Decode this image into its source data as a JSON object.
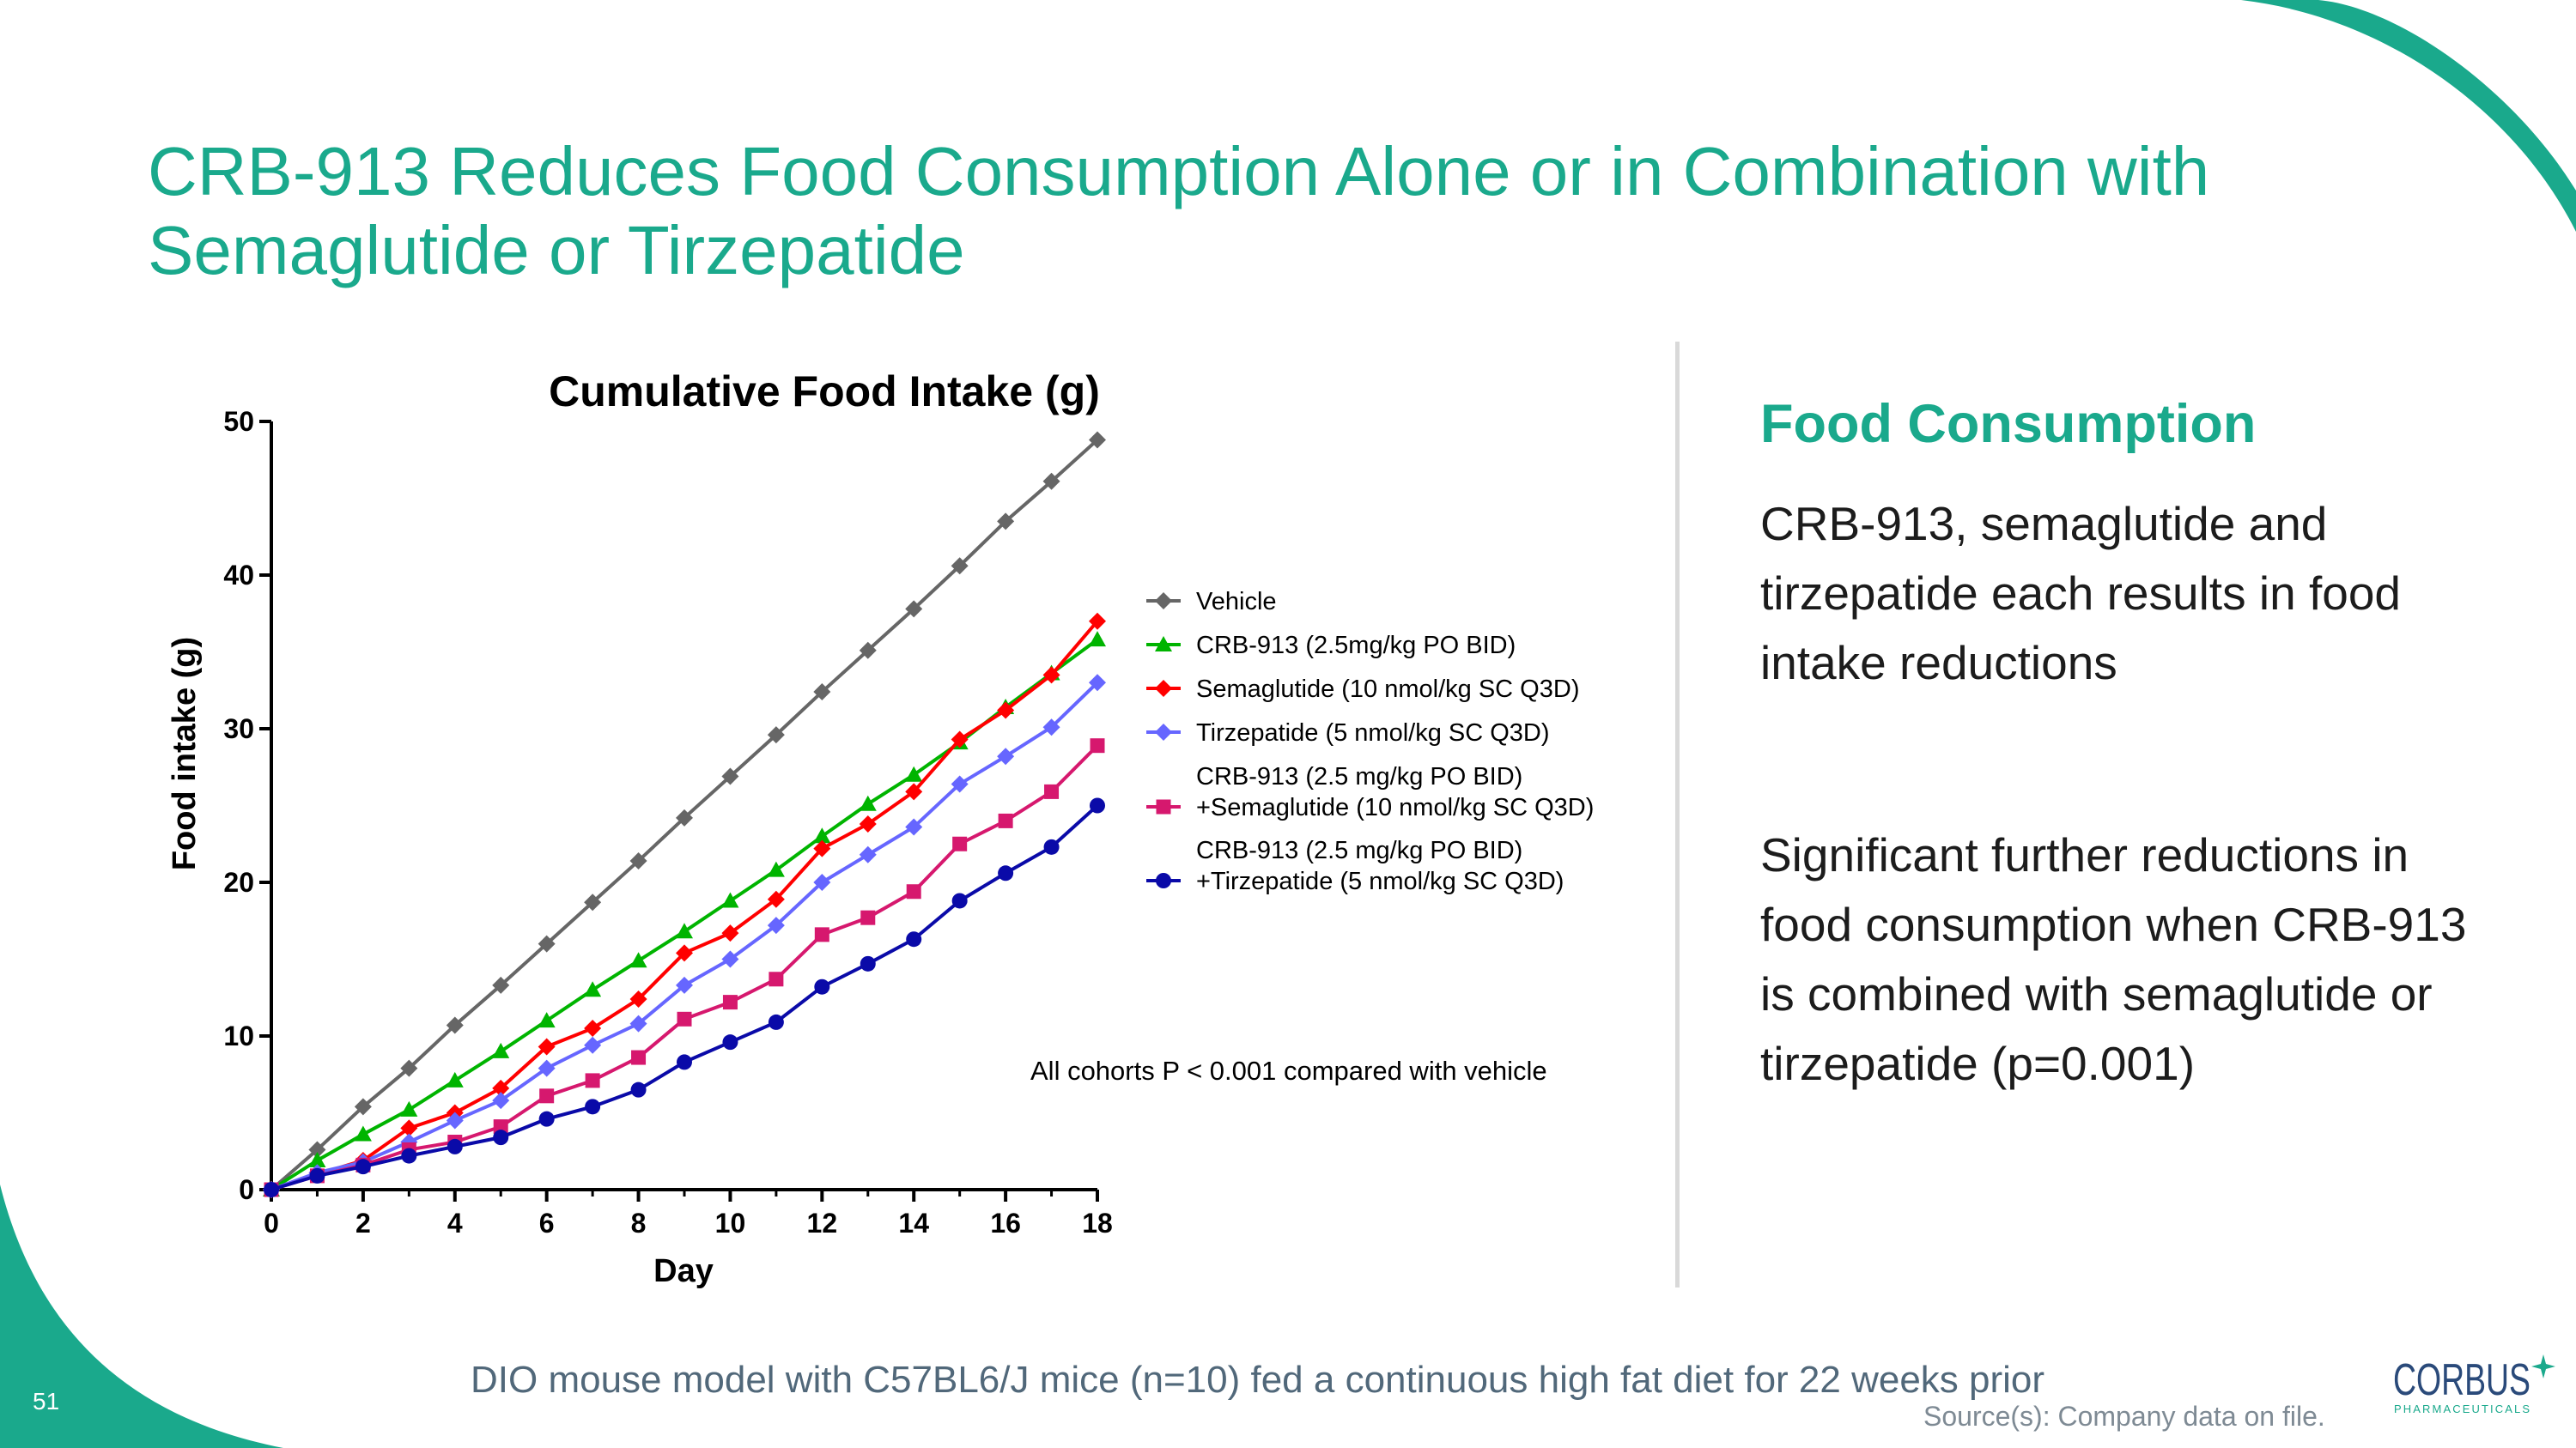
{
  "slide": {
    "title_line1": "CRB-913 Reduces Food Consumption Alone or in Combination with",
    "title_line2": "Semaglutide or Tirzepatide",
    "page_number": "51",
    "footnote": "DIO mouse model with C57BL6/J mice (n=10) fed a continuous high fat diet for 22 weeks prior",
    "source": "Source(s): Company data on file.",
    "accent_color": "#1aa98c"
  },
  "panel": {
    "heading": "Food Consumption",
    "paragraph1": "CRB-913, semaglutide and tirzepatide each results in food intake reductions",
    "paragraph2": "Significant further reductions in food consumption when CRB-913 is combined with semaglutide or tirzepatide (p=0.001)"
  },
  "logo": {
    "name": "CORBUS",
    "sub": "PHARMACEUTICALS",
    "icon": "corbus-star-icon"
  },
  "chart_data": {
    "type": "line",
    "title": "Cumulative Food Intake (g)",
    "xlabel": "Day",
    "ylabel": "Food intake (g)",
    "xlim": [
      0,
      18
    ],
    "ylim": [
      0,
      50
    ],
    "xticks": [
      0,
      2,
      4,
      6,
      8,
      10,
      12,
      14,
      16,
      18
    ],
    "yticks": [
      0,
      10,
      20,
      30,
      40,
      50
    ],
    "legend_position": "right",
    "annotation": "All cohorts P < 0.001 compared with vehicle",
    "x": [
      0,
      1,
      2,
      3,
      4,
      5,
      6,
      7,
      8,
      9,
      10,
      11,
      12,
      13,
      14,
      15,
      16,
      17,
      18
    ],
    "series": [
      {
        "name": "Vehicle",
        "label_lines": [
          "Vehicle"
        ],
        "color": "#666666",
        "marker": "diamond",
        "values": [
          0,
          2.6,
          5.4,
          7.9,
          10.7,
          13.3,
          16.0,
          18.7,
          21.4,
          24.2,
          26.9,
          29.6,
          32.4,
          35.1,
          37.8,
          40.6,
          43.5,
          46.1,
          48.8
        ]
      },
      {
        "name": "CRB-913 (2.5mg/kg PO BID)",
        "label_lines": [
          "CRB-913 (2.5mg/kg PO BID)"
        ],
        "color": "#00b400",
        "marker": "triangle",
        "values": [
          0,
          1.9,
          3.6,
          5.2,
          7.1,
          9.0,
          11.0,
          13.0,
          14.9,
          16.8,
          18.8,
          20.8,
          23.0,
          25.1,
          27.0,
          29.1,
          31.4,
          33.6,
          35.8
        ]
      },
      {
        "name": "Semaglutide (10 nmol/kg SC Q3D)",
        "label_lines": [
          "Semaglutide (10 nmol/kg SC Q3D)"
        ],
        "color": "#ff0000",
        "marker": "diamond",
        "values": [
          0,
          1.0,
          1.9,
          4.0,
          5.0,
          6.6,
          9.3,
          10.5,
          12.4,
          15.4,
          16.7,
          18.9,
          22.2,
          23.8,
          25.9,
          29.3,
          31.2,
          33.5,
          37.0
        ]
      },
      {
        "name": "Tirzepatide (5 nmol/kg SC Q3D)",
        "label_lines": [
          "Tirzepatide (5 nmol/kg SC Q3D)"
        ],
        "color": "#6666ff",
        "marker": "diamond",
        "values": [
          0,
          1.1,
          1.8,
          3.1,
          4.5,
          5.8,
          7.9,
          9.4,
          10.8,
          13.3,
          15.0,
          17.2,
          20.0,
          21.8,
          23.6,
          26.4,
          28.2,
          30.1,
          33.0
        ]
      },
      {
        "name": "CRB-913 (2.5 mg/kg PO BID) +Semaglutide (10 nmol/kg SC Q3D)",
        "label_lines": [
          "CRB-913 (2.5 mg/kg PO BID)",
          "+Semaglutide (10 nmol/kg SC Q3D)"
        ],
        "color": "#d6186e",
        "marker": "square",
        "values": [
          0,
          0.9,
          1.6,
          2.6,
          3.1,
          4.1,
          6.1,
          7.1,
          8.6,
          11.1,
          12.2,
          13.7,
          16.6,
          17.7,
          19.4,
          22.5,
          24.0,
          25.9,
          28.9
        ]
      },
      {
        "name": "CRB-913 (2.5 mg/kg PO BID) +Tirzepatide (5 nmol/kg SC Q3D)",
        "label_lines": [
          "CRB-913 (2.5 mg/kg PO BID)",
          "+Tirzepatide (5 nmol/kg SC Q3D)"
        ],
        "color": "#0a0aa8",
        "marker": "circle",
        "values": [
          0,
          0.9,
          1.5,
          2.2,
          2.8,
          3.4,
          4.6,
          5.4,
          6.5,
          8.3,
          9.6,
          10.9,
          13.2,
          14.7,
          16.3,
          18.8,
          20.6,
          22.3,
          25.0
        ]
      }
    ]
  }
}
